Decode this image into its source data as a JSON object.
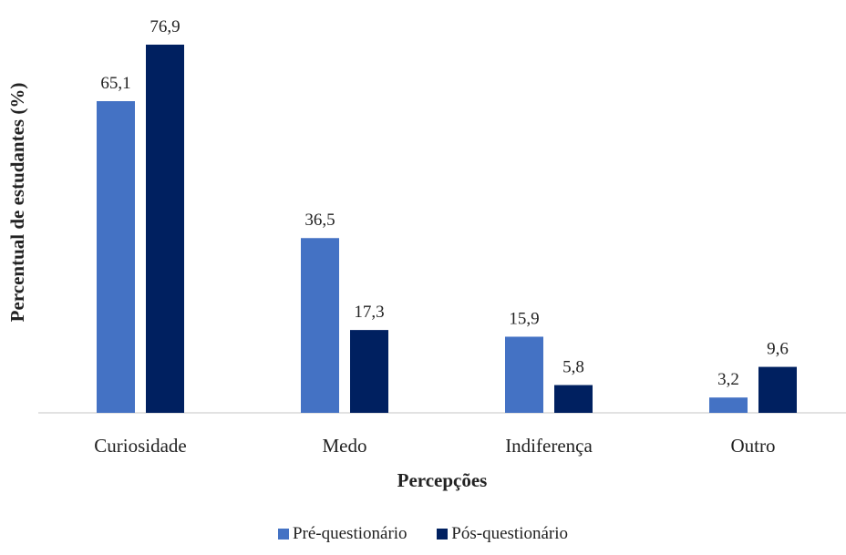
{
  "chart_data": {
    "type": "bar",
    "xlabel": "Percepções",
    "ylabel": "Percentual de estudantes (%)",
    "categories": [
      "Curiosidade",
      "Medo",
      "Indiferença",
      "Outro"
    ],
    "series": [
      {
        "name": "Pré-questionário",
        "color": "#4472C4",
        "values": [
          65.1,
          36.5,
          15.9,
          3.2
        ],
        "labels": [
          "65,1",
          "36,5",
          "15,9",
          "3,2"
        ]
      },
      {
        "name": "Pós-questionário",
        "color": "#002060",
        "values": [
          76.9,
          17.3,
          5.8,
          9.6
        ],
        "labels": [
          "76,9",
          "17,3",
          "5,8",
          "9,6"
        ]
      }
    ],
    "ylim": [
      0,
      76.9
    ],
    "grid": false,
    "legend": "bottom"
  }
}
